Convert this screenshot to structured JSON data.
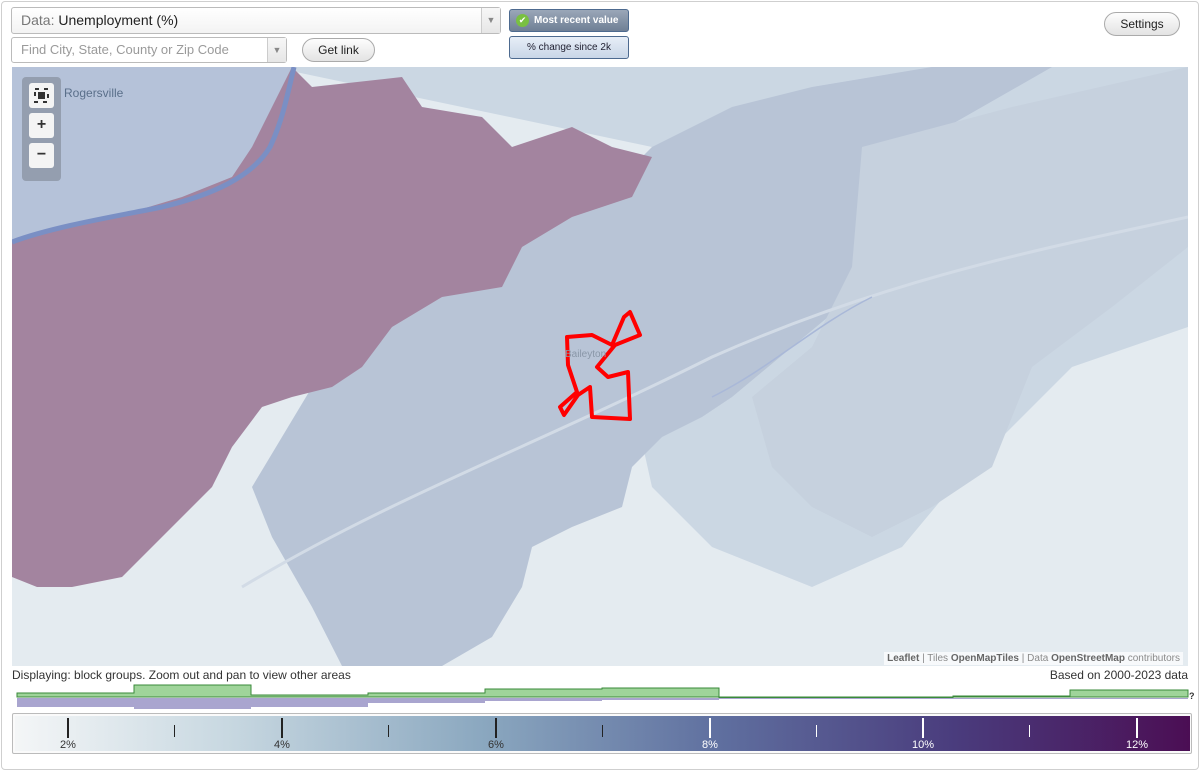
{
  "data_select": {
    "label": "Data:",
    "value": "Unemployment (%)"
  },
  "search": {
    "placeholder": "Find City, State, County or Zip Code"
  },
  "buttons": {
    "get_link": "Get link",
    "most_recent": "Most recent value",
    "pct_change": "% change since 2k",
    "settings": "Settings"
  },
  "map": {
    "place_labels": [
      "Rogersville",
      "Baileyton"
    ],
    "zoom_in": "+",
    "zoom_out": "−",
    "attribution": {
      "leaflet": "Leaflet",
      "tiles_prefix": "| Tiles",
      "tiles": "OpenMapTiles",
      "data_prefix": "| Data",
      "data": "OpenStreetMap",
      "suffix": "contributors"
    }
  },
  "status": {
    "displaying": "Displaying: block groups. Zoom out and pan to view other areas",
    "based_on": "Based on 2000-2023 data"
  },
  "legend": {
    "help": "?",
    "labels": [
      "2%",
      "4%",
      "6%",
      "8%",
      "10%",
      "12%"
    ]
  },
  "colors": {
    "high_region": "#a3849f",
    "mid_region": "#b8c4d6",
    "highlight_outline": "#ff0000",
    "histogram_green": "#9fd49a",
    "histogram_purple": "#a9a5cf"
  },
  "icons": [
    "fullscreen-icon",
    "check-icon",
    "dropdown-arrow-icon"
  ]
}
